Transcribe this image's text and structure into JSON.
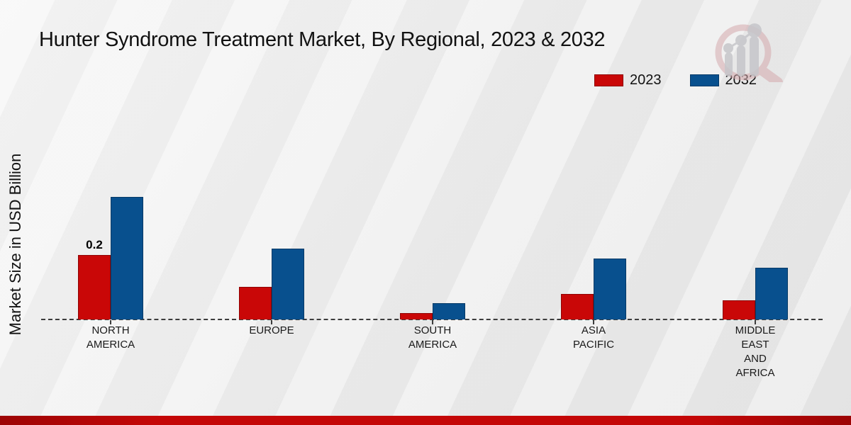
{
  "title": "Hunter Syndrome Treatment Market, By Regional, 2023 & 2032",
  "y_axis_label": "Market Size in USD Billion",
  "legend": {
    "items": [
      {
        "label": "2023",
        "color": "#c90707"
      },
      {
        "label": "2032",
        "color": "#08508e"
      }
    ]
  },
  "logo": {
    "icon": "magnifier-bar-chart-logo"
  },
  "footer_bar_color": "#c40707",
  "chart_data": {
    "type": "bar",
    "title": "Hunter Syndrome Treatment Market, By Regional, 2023 & 2032",
    "ylabel": "Market Size in USD Billion",
    "xlabel": "",
    "categories": [
      "NORTH AMERICA",
      "EUROPE",
      "SOUTH AMERICA",
      "ASIA PACIFIC",
      "MIDDLE EAST AND AFRICA"
    ],
    "category_label_lines": [
      [
        "NORTH",
        "AMERICA"
      ],
      [
        "EUROPE"
      ],
      [
        "SOUTH",
        "AMERICA"
      ],
      [
        "ASIA",
        "PACIFIC"
      ],
      [
        "MIDDLE",
        "EAST",
        "AND",
        "AFRICA"
      ]
    ],
    "series": [
      {
        "name": "2023",
        "color": "#c90707",
        "border": "#8f0303",
        "values": [
          0.2,
          0.1,
          0.02,
          0.08,
          0.06
        ]
      },
      {
        "name": "2032",
        "color": "#08508e",
        "border": "#063a67",
        "values": [
          0.38,
          0.22,
          0.05,
          0.19,
          0.16
        ]
      }
    ],
    "bar_labels": [
      {
        "series": 0,
        "category": 0,
        "text": "0.2"
      }
    ],
    "ylim": [
      0,
      0.42
    ],
    "grid": false,
    "baseline_style": "dashed",
    "legend_position": "top-right"
  }
}
